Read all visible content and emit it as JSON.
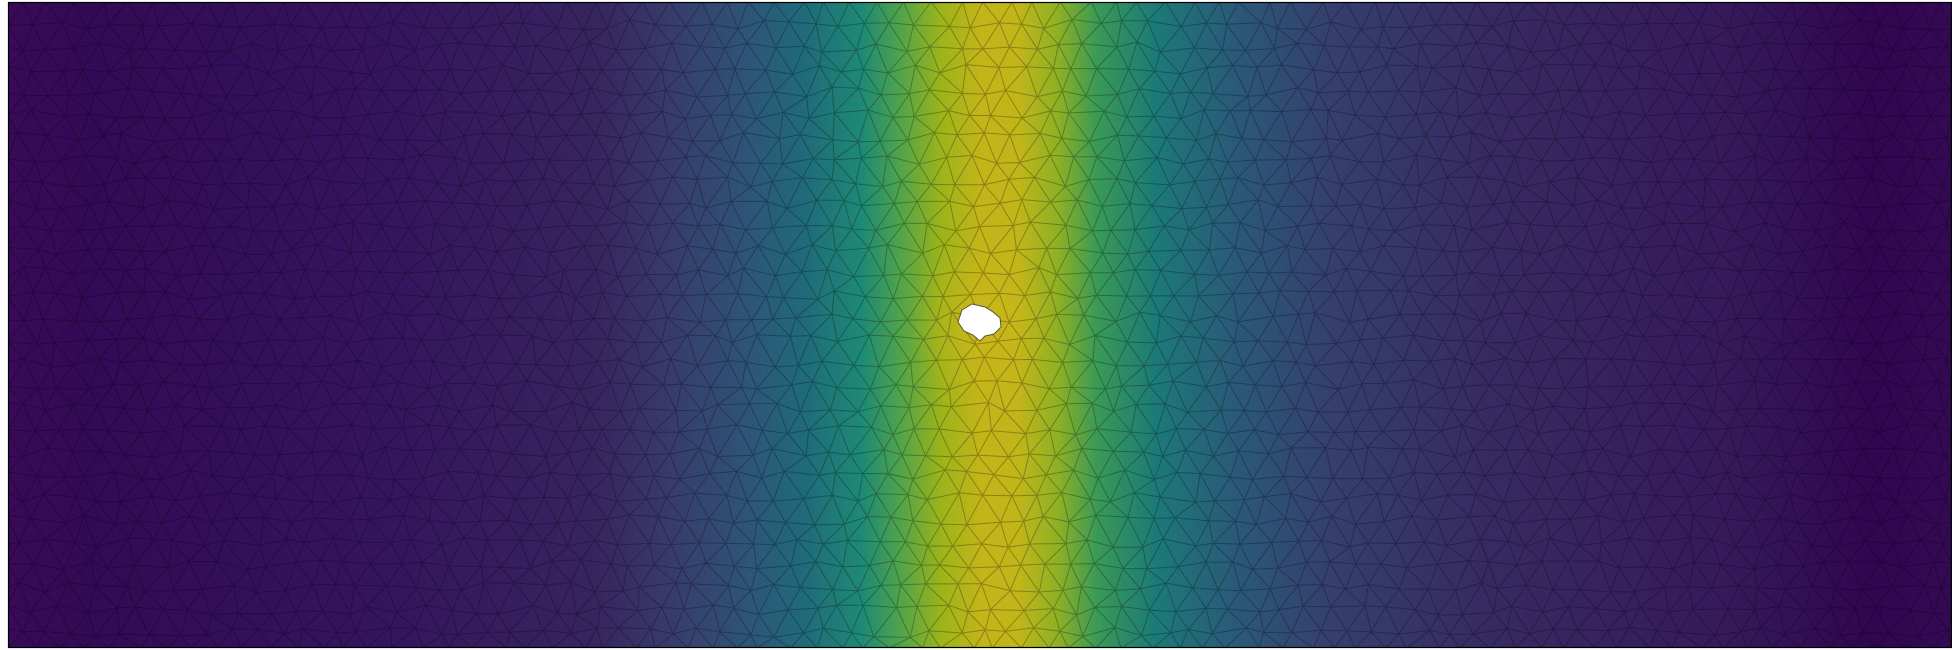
{
  "figure": {
    "colormap": "viridis",
    "colormap_stops": [
      "#440154",
      "#3b528b",
      "#21918c",
      "#5ec962",
      "#fde725"
    ],
    "mesh_type": "unstructured triangular mesh",
    "mesh_edge_color": "#000000",
    "background_color": "#ffffff",
    "has_hole": true,
    "hole_color": "#ffffff",
    "axes_visible": false,
    "colorbar_visible": false,
    "field_peak_relative_x": 0.5,
    "field_description_values": {
      "low_level": 0.0,
      "high_level": 1.0
    }
  }
}
